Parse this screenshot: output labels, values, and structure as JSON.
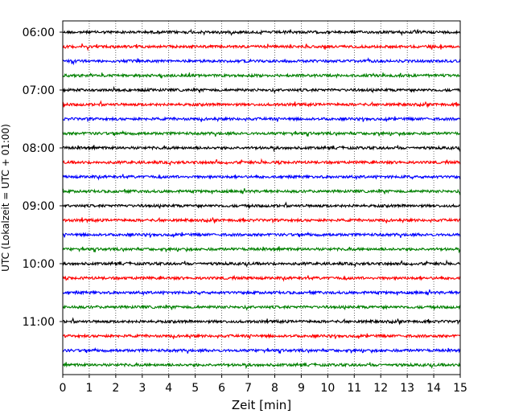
{
  "chart_data": {
    "type": "line",
    "subtype": "helicorder",
    "title": "",
    "xlabel": "Zeit  [min]",
    "ylabel": "UTC (Lokalzeit = UTC + 01:00)",
    "xlim": [
      0,
      15
    ],
    "x_ticks": [
      0,
      1,
      2,
      3,
      4,
      5,
      6,
      7,
      8,
      9,
      10,
      11,
      12,
      13,
      14,
      15
    ],
    "x_tick_labels": [
      "0",
      "1",
      "2",
      "3",
      "4",
      "5",
      "6",
      "7",
      "8",
      "9",
      "10",
      "11",
      "12",
      "13",
      "14",
      "15"
    ],
    "y_tick_labels": [
      "06:00",
      "07:00",
      "08:00",
      "09:00",
      "10:00",
      "11:00"
    ],
    "row_interval_minutes": 15,
    "start_time": "06:00",
    "row_count": 24,
    "colors": [
      "#000000",
      "#ff0000",
      "#0000ff",
      "#008000"
    ],
    "grid": {
      "vertical_dotted": true,
      "horizontal": false
    },
    "legend": "none",
    "rows": [
      {
        "start": "06:00",
        "color": "#000000"
      },
      {
        "start": "06:15",
        "color": "#ff0000"
      },
      {
        "start": "06:30",
        "color": "#0000ff"
      },
      {
        "start": "06:45",
        "color": "#008000"
      },
      {
        "start": "07:00",
        "color": "#000000"
      },
      {
        "start": "07:15",
        "color": "#ff0000"
      },
      {
        "start": "07:30",
        "color": "#0000ff"
      },
      {
        "start": "07:45",
        "color": "#008000"
      },
      {
        "start": "08:00",
        "color": "#000000"
      },
      {
        "start": "08:15",
        "color": "#ff0000"
      },
      {
        "start": "08:30",
        "color": "#0000ff"
      },
      {
        "start": "08:45",
        "color": "#008000"
      },
      {
        "start": "09:00",
        "color": "#000000"
      },
      {
        "start": "09:15",
        "color": "#ff0000"
      },
      {
        "start": "09:30",
        "color": "#0000ff"
      },
      {
        "start": "09:45",
        "color": "#008000"
      },
      {
        "start": "10:00",
        "color": "#000000"
      },
      {
        "start": "10:15",
        "color": "#ff0000"
      },
      {
        "start": "10:30",
        "color": "#0000ff"
      },
      {
        "start": "10:45",
        "color": "#008000"
      },
      {
        "start": "11:00",
        "color": "#000000"
      },
      {
        "start": "11:15",
        "color": "#ff0000"
      },
      {
        "start": "11:30",
        "color": "#0000ff"
      },
      {
        "start": "11:45",
        "color": "#008000"
      }
    ]
  }
}
